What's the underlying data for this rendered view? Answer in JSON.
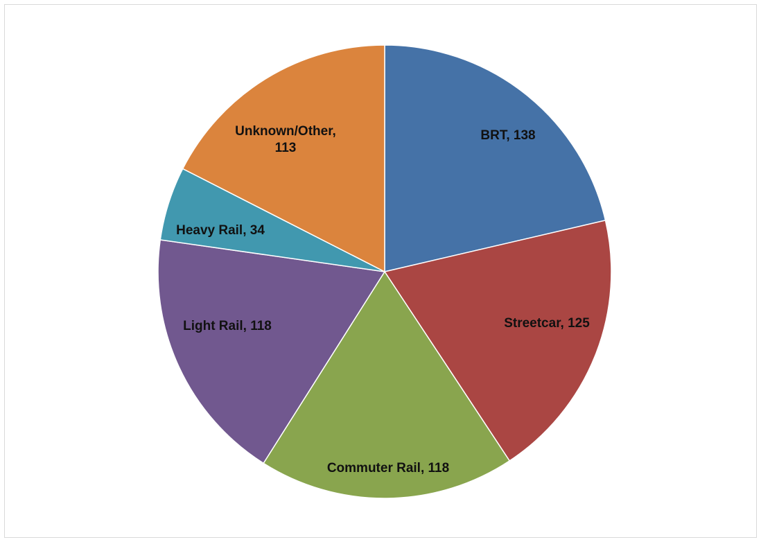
{
  "chart_data": {
    "type": "pie",
    "title": "",
    "start_angle_deg": 0,
    "direction": "clockwise",
    "slices": [
      {
        "label": "BRT",
        "value": 138,
        "color": "#4572A7",
        "data_label": "BRT, 138"
      },
      {
        "label": "Streetcar",
        "value": 125,
        "color": "#AA4643",
        "data_label": "Streetcar, 125"
      },
      {
        "label": "Commuter Rail",
        "value": 118,
        "color": "#89A54E",
        "data_label": "Commuter Rail, 118"
      },
      {
        "label": "Light Rail",
        "value": 118,
        "color": "#71588F",
        "data_label": "Light Rail, 118"
      },
      {
        "label": "Heavy Rail",
        "value": 34,
        "color": "#4198AF",
        "data_label": "Heavy Rail, 34"
      },
      {
        "label": "Unknown/Other",
        "value": 113,
        "color": "#DB843D",
        "data_label": [
          "Unknown/Other,",
          "113"
        ]
      }
    ]
  }
}
